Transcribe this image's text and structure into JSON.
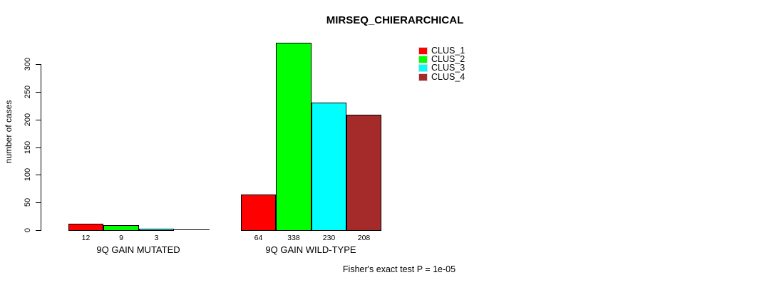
{
  "title": "MIRSEQ_CHIERARCHICAL",
  "footer": "Fisher's exact test P = 1e-05",
  "chart_data": {
    "type": "bar",
    "title": "MIRSEQ_CHIERARCHICAL",
    "xlabel": "",
    "ylabel": "number of cases",
    "categories": [
      "9Q GAIN MUTATED",
      "9Q GAIN WILD-TYPE"
    ],
    "series": [
      {
        "name": "CLUS_1",
        "color": "#FF0000",
        "values": [
          12,
          64
        ]
      },
      {
        "name": "CLUS_2",
        "color": "#00FF00",
        "values": [
          9,
          338
        ]
      },
      {
        "name": "CLUS_3",
        "color": "#00FFFF",
        "values": [
          3,
          230
        ]
      },
      {
        "name": "CLUS_4",
        "color": "#A52A2A",
        "values": [
          0,
          208
        ]
      }
    ],
    "bar_value_labels": [
      [
        "12",
        "9",
        "3",
        ""
      ],
      [
        "64",
        "338",
        "230",
        "208"
      ]
    ],
    "y_ticks": [
      0,
      50,
      100,
      150,
      200,
      250,
      300
    ],
    "ylim": [
      0,
      340
    ],
    "grid": false,
    "legend_position": "top-right",
    "annotation": "Fisher's exact test P = 1e-05"
  },
  "legend": {
    "items": [
      {
        "label": "CLUS_1",
        "color": "#FF0000"
      },
      {
        "label": "CLUS_2",
        "color": "#00FF00"
      },
      {
        "label": "CLUS_3",
        "color": "#00FFFF"
      },
      {
        "label": "CLUS_4",
        "color": "#A52A2A"
      }
    ]
  }
}
